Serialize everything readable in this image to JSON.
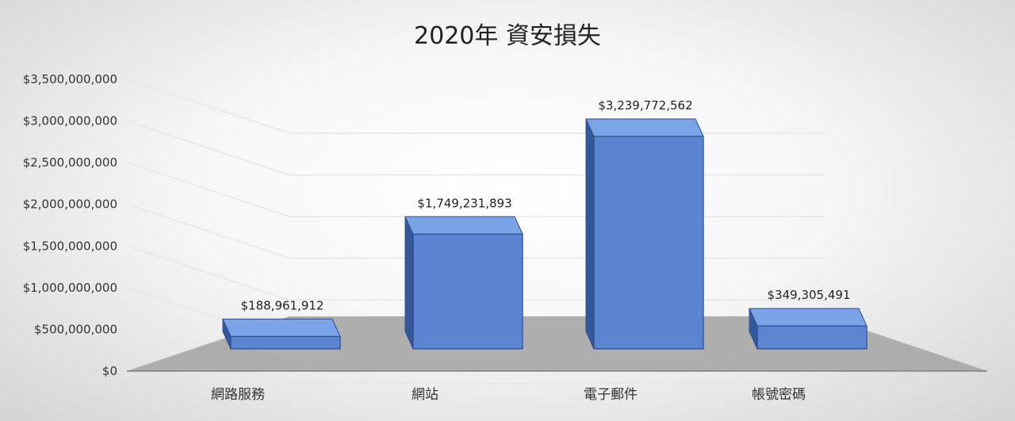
{
  "chart_data": {
    "type": "bar",
    "title": "2020年 資安損失",
    "xlabel": "",
    "ylabel": "",
    "categories": [
      "網路服務",
      "網站",
      "電子郵件",
      "帳號密碼"
    ],
    "values": [
      188961912,
      1749231893,
      3239772562,
      349305491
    ],
    "data_labels": [
      "$188,961,912",
      "$1,749,231,893",
      "$3,239,772,562",
      "$349,305,491"
    ],
    "ylim": [
      0,
      3500000000
    ],
    "y_ticks": [
      {
        "value": 0,
        "label": "$0"
      },
      {
        "value": 500000000,
        "label": "$500,000,000"
      },
      {
        "value": 1000000000,
        "label": "$1,000,000,000"
      },
      {
        "value": 1500000000,
        "label": "$1,500,000,000"
      },
      {
        "value": 2000000000,
        "label": "$2,000,000,000"
      },
      {
        "value": 2500000000,
        "label": "$2,500,000,000"
      },
      {
        "value": 3000000000,
        "label": "$3,000,000,000"
      },
      {
        "value": 3500000000,
        "label": "$3,500,000,000"
      }
    ],
    "grid": true,
    "legend": "none",
    "colors": {
      "bar_front": "#5b85d0",
      "bar_top": "#7aa3e8",
      "bar_side": "#34589c",
      "bar_stroke": "#2c4c8c",
      "floor": "#a6a6a6",
      "gridline": "#e6e6e6"
    }
  }
}
